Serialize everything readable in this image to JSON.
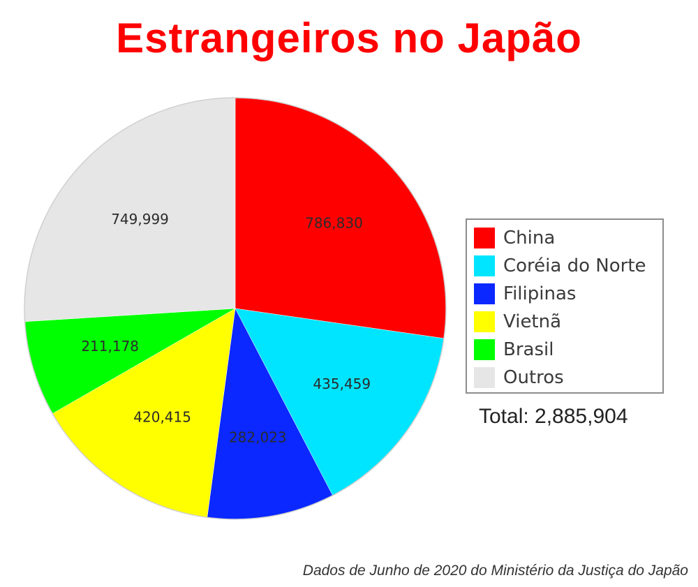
{
  "chart_data": {
    "type": "pie",
    "title": "Estrangeiros no Japão",
    "title_color": "#ff0000",
    "categories": [
      "China",
      "Coréia do Norte",
      "Filipinas",
      "Vietnã",
      "Brasil",
      "Outros"
    ],
    "values": [
      786830,
      435459,
      282023,
      420415,
      211178,
      749999
    ],
    "value_labels": [
      "786,830",
      "435,459",
      "282,023",
      "420,415",
      "211,178",
      "749,999"
    ],
    "colors": [
      "#ff0000",
      "#00e5ff",
      "#0a28ff",
      "#ffff00",
      "#00ff00",
      "#e6e6e6"
    ],
    "legend_position": "right",
    "total_text": "Total: 2,885,904",
    "source_note": "Dados de Junho de 2020 do Ministério da Justiça do Japão"
  }
}
